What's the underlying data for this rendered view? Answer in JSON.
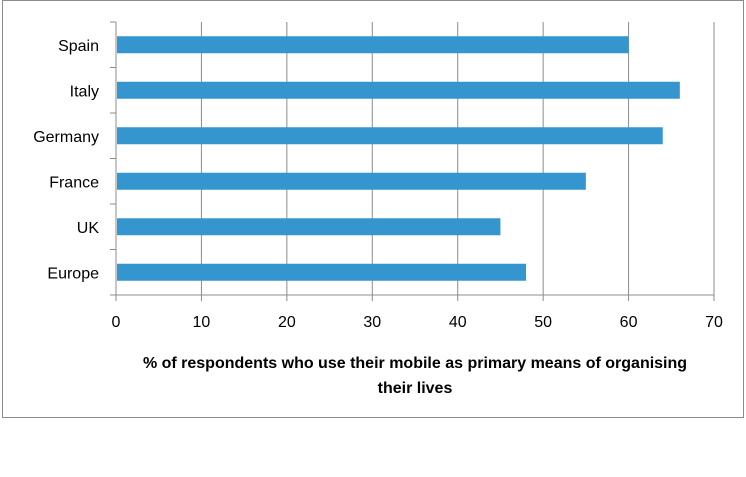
{
  "chart_data": {
    "type": "bar",
    "orientation": "horizontal",
    "categories": [
      "Spain",
      "Italy",
      "Germany",
      "France",
      "UK",
      "Europe"
    ],
    "values": [
      60,
      66,
      64,
      55,
      45,
      48
    ],
    "xlabel": "% of respondents who use their mobile as primary means of organising their lives",
    "xlabel_lines": [
      "% of respondents who use their mobile as primary means of organising",
      "their lives"
    ],
    "xticks": [
      "0",
      "10",
      "20",
      "30",
      "40",
      "50",
      "60",
      "70"
    ],
    "xlim": [
      0,
      70
    ],
    "grid": "vertical",
    "bar_color": "#3596cf",
    "grid_color": "#8c8c8c"
  }
}
